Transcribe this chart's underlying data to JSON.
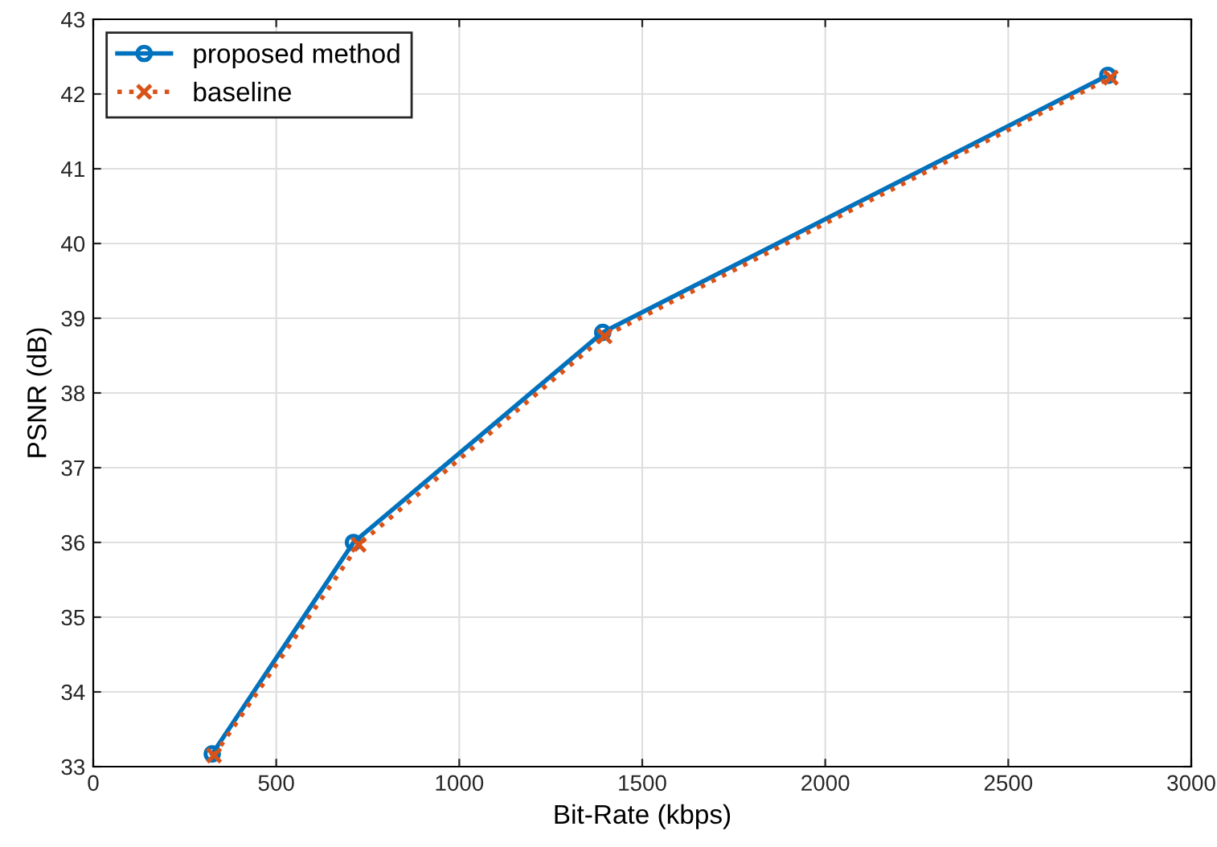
{
  "chart_data": {
    "type": "line",
    "xlabel": "Bit-Rate (kbps)",
    "ylabel": "PSNR (dB)",
    "xlim": [
      0,
      3000
    ],
    "xticks": [
      0,
      500,
      1000,
      1500,
      2000,
      2500,
      3000
    ],
    "ylim": [
      33,
      43
    ],
    "yticks": [
      33,
      34,
      35,
      36,
      37,
      38,
      39,
      40,
      41,
      42,
      43
    ],
    "grid": true,
    "legend": "top left",
    "series": [
      {
        "name": "proposed method",
        "color": "#0072bd",
        "marker": "circle",
        "line_style": "solid",
        "x": [
          325,
          711,
          1392,
          2772
        ],
        "values": [
          33.17,
          36.0,
          38.81,
          42.25
        ]
      },
      {
        "name": "baseline",
        "color": "#d95319",
        "marker": "cross",
        "line_style": "dotted",
        "x": [
          330,
          725,
          1397,
          2780
        ],
        "values": [
          33.15,
          35.97,
          38.76,
          42.22
        ]
      }
    ]
  }
}
